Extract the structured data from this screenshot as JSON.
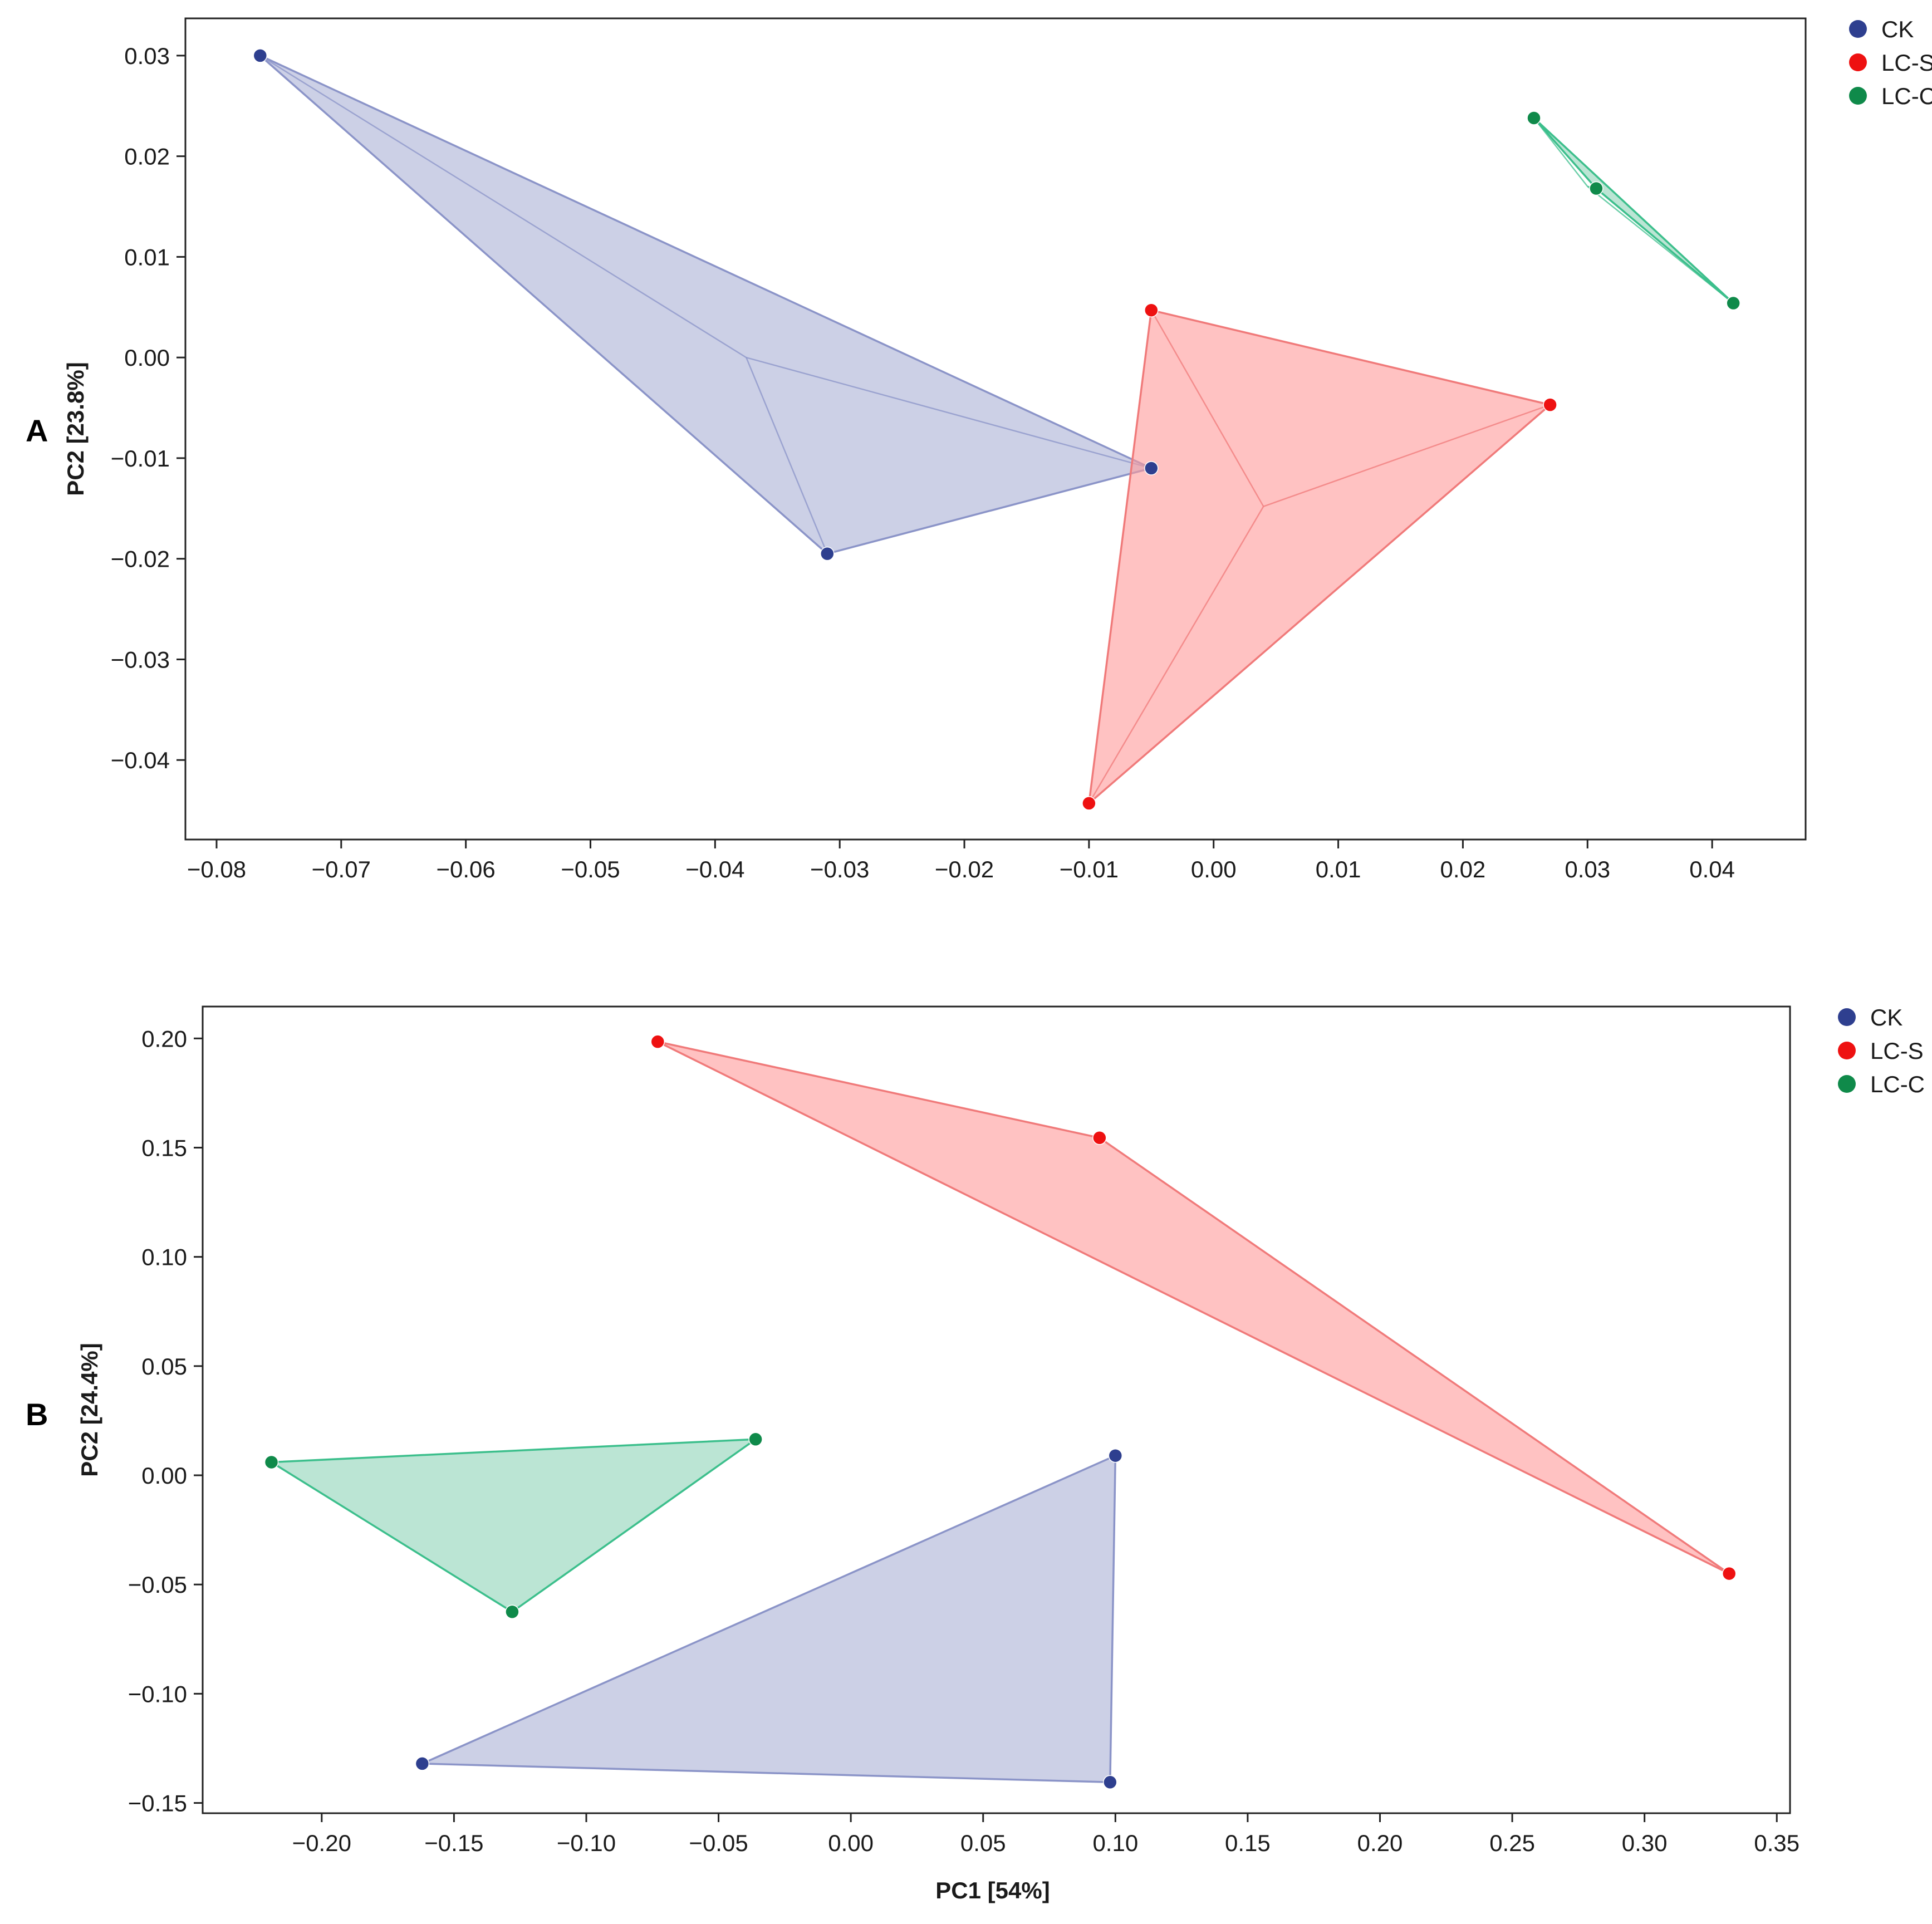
{
  "colors": {
    "CK": "#2e3f8f",
    "LC-S": "#ee1111",
    "LC-C": "#0f8a4a",
    "CK_fill": "#aab1d6",
    "LC-S_fill": "#ff9a9a",
    "LC-C_fill": "#8ed4b8",
    "CK_edge": "#8b94c8",
    "LC-S_edge": "#f07a7a",
    "LC-C_edge": "#3cbf8c"
  },
  "chart_data": [
    {
      "type": "scatter",
      "panel": "A",
      "title": "",
      "xlabel": "",
      "ylabel": "PC2 [23.8%]",
      "xlim": [
        -0.0825,
        0.0475
      ],
      "ylim": [
        -0.0479,
        0.0337
      ],
      "xticks": [
        -0.08,
        -0.07,
        -0.06,
        -0.05,
        -0.04,
        -0.03,
        -0.02,
        -0.01,
        0.0,
        0.01,
        0.02,
        0.03,
        0.04
      ],
      "xtick_labels": [
        "−0.08",
        "−0.07",
        "−0.06",
        "−0.05",
        "−0.04",
        "−0.03",
        "−0.02",
        "−0.01",
        "0.00",
        "0.01",
        "0.02",
        "0.03",
        "0.04"
      ],
      "yticks": [
        0.03,
        0.02,
        0.01,
        0.0,
        -0.01,
        -0.02,
        -0.03,
        -0.04
      ],
      "ytick_labels": [
        "0.03",
        "0.02",
        "0.01",
        "0.00",
        "−0.01",
        "−0.02",
        "−0.03",
        "−0.04"
      ],
      "legend": [
        "CK",
        "LC-S",
        "LC-C"
      ],
      "legend_position": "top-right",
      "series": [
        {
          "name": "CK",
          "points": [
            [
              -0.0765,
              0.03
            ],
            [
              -0.005,
              -0.011
            ],
            [
              -0.031,
              -0.0195
            ]
          ],
          "hull_center": [
            -0.0375,
            0.0
          ]
        },
        {
          "name": "LC-S",
          "points": [
            [
              -0.005,
              0.0047
            ],
            [
              0.027,
              -0.0047
            ],
            [
              -0.01,
              -0.0443
            ]
          ],
          "hull_center": [
            0.004,
            -0.0148
          ]
        },
        {
          "name": "LC-C",
          "points": [
            [
              0.0257,
              0.0238
            ],
            [
              0.0307,
              0.0168
            ],
            [
              0.0417,
              0.0054
            ]
          ],
          "hull_center": [
            0.03,
            0.017
          ]
        }
      ]
    },
    {
      "type": "scatter",
      "panel": "B",
      "title": "",
      "xlabel": "PC1 [54%]",
      "ylabel": "PC2 [24.4%]",
      "xlim": [
        -0.245,
        0.355
      ],
      "ylim": [
        -0.1547,
        0.2146
      ],
      "xticks": [
        -0.2,
        -0.15,
        -0.1,
        -0.05,
        0.0,
        0.05,
        0.1,
        0.15,
        0.2,
        0.25,
        0.3,
        0.35
      ],
      "xtick_labels": [
        "−0.20",
        "−0.15",
        "−0.10",
        "−0.05",
        "0.00",
        "0.05",
        "0.10",
        "0.15",
        "0.20",
        "0.25",
        "0.30",
        "0.35"
      ],
      "yticks": [
        0.2,
        0.15,
        0.1,
        0.05,
        0.0,
        -0.05,
        -0.1,
        -0.15
      ],
      "ytick_labels": [
        "0.20",
        "0.15",
        "0.10",
        "0.05",
        "0.00",
        "−0.05",
        "−0.10",
        "−0.15"
      ],
      "legend": [
        "CK",
        "LC-S",
        "LC-C"
      ],
      "legend_position": "top-right",
      "series": [
        {
          "name": "CK",
          "points": [
            [
              0.1,
              0.009
            ],
            [
              -0.162,
              -0.132
            ],
            [
              0.098,
              -0.1405
            ]
          ]
        },
        {
          "name": "LC-S",
          "points": [
            [
              -0.073,
              0.1985
            ],
            [
              0.094,
              0.1545
            ],
            [
              0.332,
              -0.045
            ]
          ]
        },
        {
          "name": "LC-C",
          "points": [
            [
              -0.219,
              0.006
            ],
            [
              -0.036,
              0.0165
            ],
            [
              -0.128,
              -0.0625
            ]
          ]
        }
      ]
    }
  ]
}
